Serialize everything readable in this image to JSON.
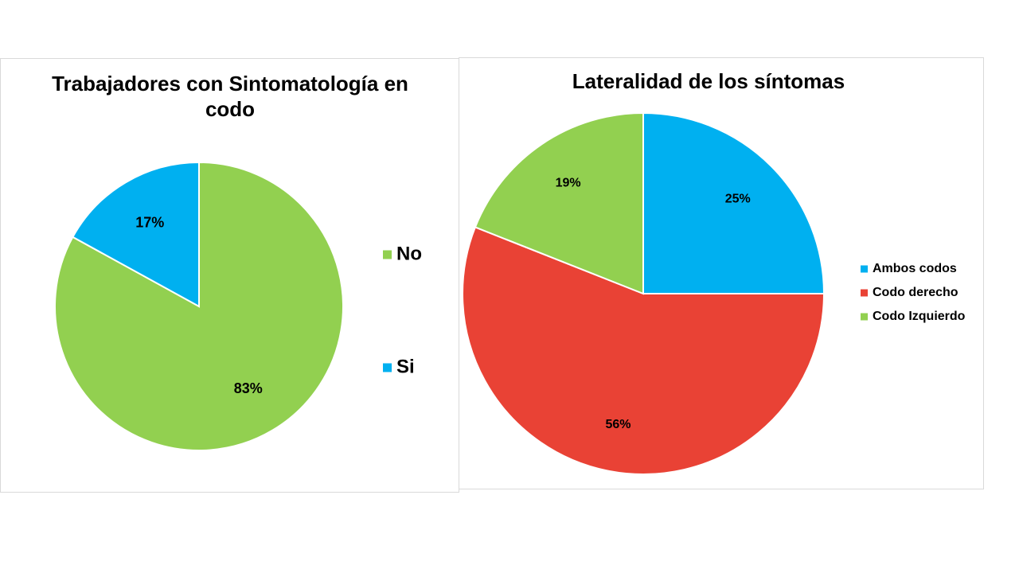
{
  "chart_data": [
    {
      "type": "pie",
      "title": "Trabajadores con Sintomatología en codo",
      "title_lines": [
        "Trabajadores con Sintomatología en",
        "codo"
      ],
      "categories": [
        "No",
        "Si"
      ],
      "values": [
        83,
        17
      ],
      "labels": [
        "83%",
        "17%"
      ],
      "colors": [
        "#92D050",
        "#00B0F0"
      ],
      "start": "12 o'clock, clockwise",
      "legend": {
        "position": "right",
        "items": [
          "No",
          "Si"
        ]
      }
    },
    {
      "type": "pie",
      "title": "Lateralidad de los síntomas",
      "title_lines": [
        "Lateralidad de los síntomas"
      ],
      "categories": [
        "Ambos codos",
        "Codo derecho",
        "Codo Izquierdo"
      ],
      "values": [
        25,
        56,
        19
      ],
      "labels": [
        "25%",
        "56%",
        "19%"
      ],
      "colors": [
        "#00B0F0",
        "#E94235",
        "#92D050"
      ],
      "start": "12 o'clock, clockwise",
      "legend": {
        "position": "right",
        "items": [
          "Ambos codos",
          "Codo derecho",
          "Codo Izquierdo"
        ]
      }
    }
  ]
}
